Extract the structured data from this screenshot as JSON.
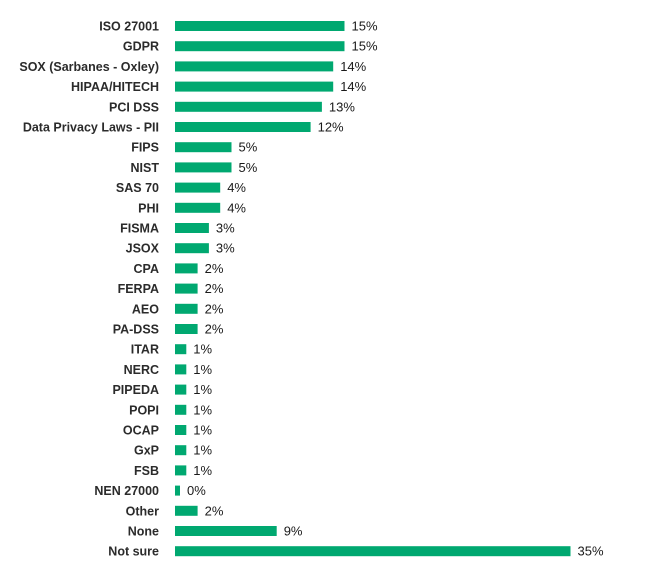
{
  "chart_data": {
    "type": "bar",
    "orientation": "horizontal",
    "bar_color": "#00a870",
    "categories": [
      "ISO 27001",
      "GDPR",
      "SOX (Sarbanes - Oxley)",
      "HIPAA/HITECH",
      "PCI DSS",
      "Data Privacy Laws - PII",
      "FIPS",
      "NIST",
      "SAS 70",
      "PHI",
      "FISMA",
      "JSOX",
      "CPA",
      "FERPA",
      "AEO",
      "PA-DSS",
      "ITAR",
      "NERC",
      "PIPEDA",
      "POPI",
      "OCAP",
      "GxP",
      "FSB",
      "NEN 27000",
      "Other",
      "None",
      "Not sure"
    ],
    "values": [
      15,
      15,
      14,
      14,
      13,
      12,
      5,
      5,
      4,
      4,
      3,
      3,
      2,
      2,
      2,
      2,
      1,
      1,
      1,
      1,
      1,
      1,
      1,
      0,
      2,
      9,
      35
    ],
    "value_labels": [
      "15%",
      "15%",
      "14%",
      "14%",
      "13%",
      "12%",
      "5%",
      "5%",
      "4%",
      "4%",
      "3%",
      "3%",
      "2%",
      "2%",
      "2%",
      "2%",
      "1%",
      "1%",
      "1%",
      "1%",
      "1%",
      "1%",
      "1%",
      "0%",
      "2%",
      "9%",
      "35%"
    ],
    "xlim": [
      0,
      35
    ],
    "grid": false,
    "legend": "none"
  }
}
